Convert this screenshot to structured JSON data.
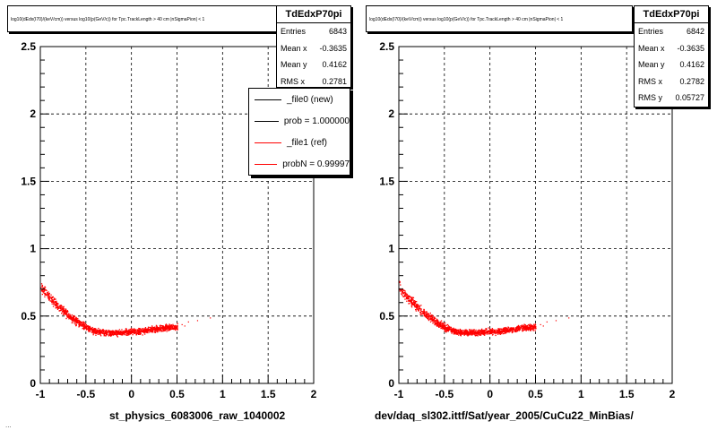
{
  "canvas_title": "log10(dEdx(I70)/(keV/cm)) versus log10(p(GeV/c)) for Tpc.TrackLength > 40 cm |nSigmaPion| < 1",
  "footer": "...",
  "chart_data": [
    {
      "type": "scatter",
      "title": "log10(dEdx(I70)/(keV/cm)) versus log10(p(GeV/c)) for Tpc.TrackLength > 40 cm |nSigmaPion| < 1",
      "xlabel": "st_physics_6083006_raw_1040002",
      "ylabel": "",
      "xlim": [
        -1,
        2
      ],
      "ylim": [
        0,
        2.5
      ],
      "xticks": [
        "-1",
        "-0.5",
        "0",
        "0.5",
        "1",
        "1.5",
        "2"
      ],
      "yticks": [
        "0",
        "0.5",
        "1",
        "1.5",
        "2",
        "2.5"
      ],
      "grid": true,
      "color": "#ff0000",
      "band_x": [
        -1.0,
        -0.9,
        -0.8,
        -0.7,
        -0.6,
        -0.5,
        -0.4,
        -0.3,
        -0.2,
        -0.1,
        0.0,
        0.1,
        0.2,
        0.3,
        0.4,
        0.5
      ],
      "band_y": [
        0.72,
        0.64,
        0.57,
        0.51,
        0.46,
        0.42,
        0.39,
        0.38,
        0.38,
        0.38,
        0.39,
        0.39,
        0.4,
        0.41,
        0.42,
        0.42
      ],
      "stats": {
        "name": "TdEdxP70pi",
        "rows": [
          {
            "label": "Entries",
            "value": "6843"
          },
          {
            "label": "Mean x",
            "value": "-0.3635"
          },
          {
            "label": "Mean y",
            "value": "0.4162"
          },
          {
            "label": "RMS x",
            "value": "0.2781"
          }
        ]
      },
      "legend": [
        {
          "label": "_file0 (new)",
          "color": "#000000"
        },
        {
          "label": "prob = 1.000000",
          "color": "#000000"
        },
        {
          "label": "_file1 (ref)",
          "color": "#ff0000"
        },
        {
          "label": "probN = 0.99997",
          "color": "#ff0000"
        }
      ]
    },
    {
      "type": "scatter",
      "title": "log10(dEdx(I70)/(keV/cm)) versus log10(p(GeV/c)) for Tpc.TrackLength > 40 cm |nSigmaPion| < 1",
      "xlabel": "dev/daq_sl302.ittf/Sat/year_2005/CuCu22_MinBias/",
      "ylabel": "",
      "xlim": [
        -1,
        2
      ],
      "ylim": [
        0,
        2.5
      ],
      "xticks": [
        "-1",
        "-0.5",
        "0",
        "0.5",
        "1",
        "1.5",
        "2"
      ],
      "yticks": [
        "0",
        "0.5",
        "1",
        "1.5",
        "2",
        "2.5"
      ],
      "grid": true,
      "color": "#ff0000",
      "band_x": [
        -1.0,
        -0.9,
        -0.8,
        -0.7,
        -0.6,
        -0.5,
        -0.4,
        -0.3,
        -0.2,
        -0.1,
        0.0,
        0.1,
        0.2,
        0.3,
        0.4,
        0.5
      ],
      "band_y": [
        0.72,
        0.64,
        0.57,
        0.51,
        0.46,
        0.42,
        0.39,
        0.38,
        0.38,
        0.38,
        0.39,
        0.39,
        0.4,
        0.41,
        0.42,
        0.42
      ],
      "stats": {
        "name": "TdEdxP70pi",
        "rows": [
          {
            "label": "Entries",
            "value": "6842"
          },
          {
            "label": "Mean x",
            "value": "-0.3635"
          },
          {
            "label": "Mean y",
            "value": "0.4162"
          },
          {
            "label": "RMS x",
            "value": "0.2782"
          },
          {
            "label": "RMS y",
            "value": "0.05727"
          }
        ]
      }
    }
  ]
}
